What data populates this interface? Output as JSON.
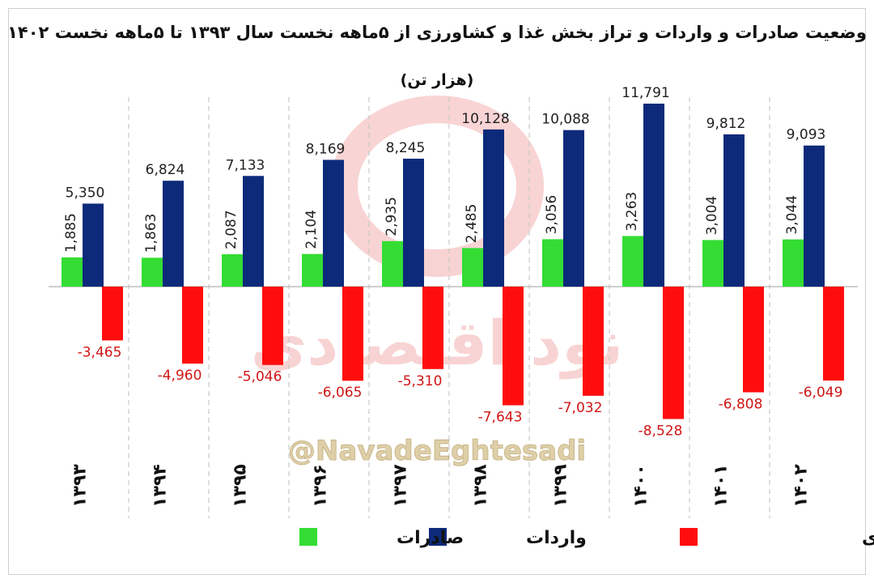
{
  "chart_data": {
    "type": "bar",
    "title": "وضعیت صادرات و واردات و تراز بخش غذا و کشاورزی از ۵ماهه نخست سال ۱۳۹۳ تا ۵ماهه نخست ۱۴۰۲",
    "subtitle": "(هزار تن)",
    "categories": [
      "۱۳۹۳",
      "۱۳۹۴",
      "۱۳۹۵",
      "۱۳۹۶",
      "۱۳۹۷",
      "۱۳۹۸",
      "۱۳۹۹",
      "۱۴۰۰",
      "۱۴۰۱",
      "۱۴۰۲"
    ],
    "series": [
      {
        "name": "صادرات",
        "color": "#33dd33",
        "label_color": "#222222",
        "values": [
          1885,
          1863,
          2087,
          2104,
          2935,
          2485,
          3056,
          3263,
          3004,
          3044
        ],
        "labels": [
          "1,885",
          "1,863",
          "2,087",
          "2,104",
          "2,935",
          "2,485",
          "3,056",
          "3,263",
          "3,004",
          "3,044"
        ]
      },
      {
        "name": "واردات",
        "color": "#0d2a7a",
        "label_color": "#222222",
        "values": [
          5350,
          6824,
          7133,
          8169,
          8245,
          10128,
          10088,
          11791,
          9812,
          9093
        ],
        "labels": [
          "5,350",
          "6,824",
          "7,133",
          "8,169",
          "8,245",
          "10,128",
          "10,088",
          "11,791",
          "9,812",
          "9,093"
        ]
      },
      {
        "name": "تراز بخش غذا و کشاورزی",
        "color": "#ff0d0d",
        "label_color": "#d01515",
        "values": [
          -3465,
          -4960,
          -5046,
          -6065,
          -5310,
          -7643,
          -7032,
          -8528,
          -6808,
          -6049
        ],
        "labels": [
          "-3,465",
          "-4,960",
          "-5,046",
          "-6,065",
          "-5,310",
          "-7,643",
          "-7,032",
          "-8,528",
          "-6,808",
          "-6,049"
        ]
      }
    ],
    "ylim": [
      -9500,
      12000
    ],
    "grid": false,
    "legend_position": "bottom",
    "separators": "dashed vertical"
  },
  "watermark": {
    "handle": "@NavadeEghtesadi",
    "text": "نود اقتصادی"
  }
}
